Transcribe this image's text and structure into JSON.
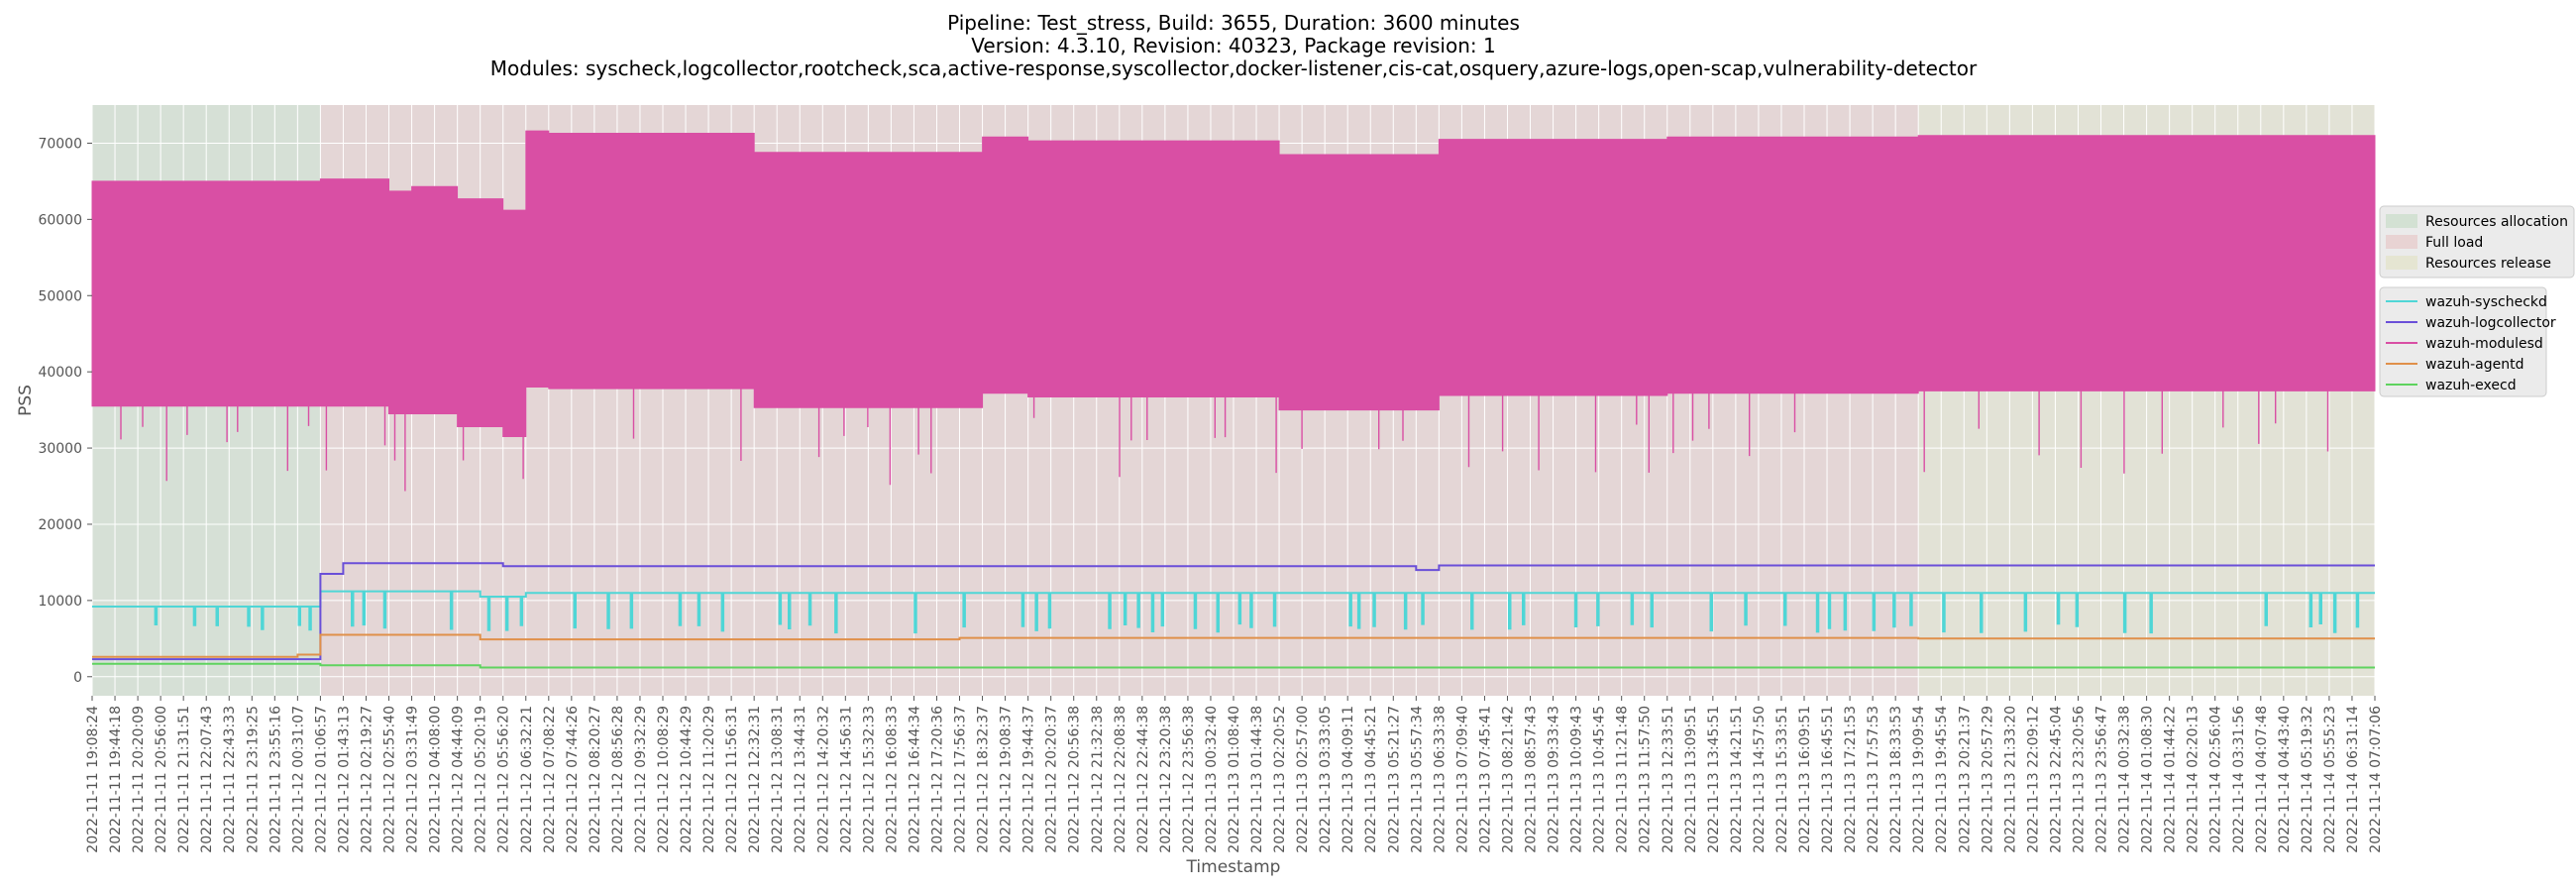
{
  "chart_data": {
    "type": "line",
    "title_lines": [
      "Pipeline: Test_stress, Build: 3655, Duration: 3600 minutes",
      "Version: 4.3.10, Revision: 40323, Package revision: 1",
      "Modules: syscheck,logcollector,rootcheck,sca,active-response,syscollector,docker-listener,cis-cat,osquery,azure-logs,open-scap,vulnerability-detector"
    ],
    "xlabel": "Timestamp",
    "ylabel": "PSS",
    "ylim": [
      -2500,
      75000
    ],
    "yticks": [
      0,
      10000,
      20000,
      30000,
      40000,
      50000,
      60000,
      70000
    ],
    "grid": true,
    "x_tick_labels": [
      "2022-11-11 19:08:24",
      "2022-11-11 19:44:18",
      "2022-11-11 20:20:09",
      "2022-11-11 20:56:00",
      "2022-11-11 21:31:51",
      "2022-11-11 22:07:43",
      "2022-11-11 22:43:33",
      "2022-11-11 23:19:25",
      "2022-11-11 23:55:16",
      "2022-11-12 00:31:07",
      "2022-11-12 01:06:57",
      "2022-11-12 01:43:13",
      "2022-11-12 02:19:27",
      "2022-11-12 02:55:40",
      "2022-11-12 03:31:49",
      "2022-11-12 04:08:00",
      "2022-11-12 04:44:09",
      "2022-11-12 05:20:19",
      "2022-11-12 05:56:20",
      "2022-11-12 06:32:21",
      "2022-11-12 07:08:22",
      "2022-11-12 07:44:26",
      "2022-11-12 08:20:27",
      "2022-11-12 08:56:28",
      "2022-11-12 09:32:29",
      "2022-11-12 10:08:29",
      "2022-11-12 10:44:29",
      "2022-11-12 11:20:29",
      "2022-11-12 11:56:31",
      "2022-11-12 12:32:31",
      "2022-11-12 13:08:31",
      "2022-11-12 13:44:31",
      "2022-11-12 14:20:32",
      "2022-11-12 14:56:31",
      "2022-11-12 15:32:33",
      "2022-11-12 16:08:33",
      "2022-11-12 16:44:34",
      "2022-11-12 17:20:36",
      "2022-11-12 17:56:37",
      "2022-11-12 18:32:37",
      "2022-11-12 19:08:37",
      "2022-11-12 19:44:37",
      "2022-11-12 20:20:37",
      "2022-11-12 20:56:38",
      "2022-11-12 21:32:38",
      "2022-11-12 22:08:38",
      "2022-11-12 22:44:38",
      "2022-11-12 23:20:38",
      "2022-11-12 23:56:38",
      "2022-11-13 00:32:40",
      "2022-11-13 01:08:40",
      "2022-11-13 01:44:38",
      "2022-11-13 02:20:52",
      "2022-11-13 02:57:00",
      "2022-11-13 03:33:05",
      "2022-11-13 04:09:11",
      "2022-11-13 04:45:21",
      "2022-11-13 05:21:27",
      "2022-11-13 05:57:34",
      "2022-11-13 06:33:38",
      "2022-11-13 07:09:40",
      "2022-11-13 07:45:41",
      "2022-11-13 08:21:42",
      "2022-11-13 08:57:43",
      "2022-11-13 09:33:43",
      "2022-11-13 10:09:43",
      "2022-11-13 10:45:45",
      "2022-11-13 11:21:48",
      "2022-11-13 11:57:50",
      "2022-11-13 12:33:51",
      "2022-11-13 13:09:51",
      "2022-11-13 13:45:51",
      "2022-11-13 14:21:51",
      "2022-11-13 14:57:50",
      "2022-11-13 15:33:51",
      "2022-11-13 16:09:51",
      "2022-11-13 16:45:51",
      "2022-11-13 17:21:53",
      "2022-11-13 17:57:53",
      "2022-11-13 18:33:53",
      "2022-11-13 19:09:54",
      "2022-11-13 19:45:54",
      "2022-11-13 20:21:37",
      "2022-11-13 20:57:29",
      "2022-11-13 21:33:20",
      "2022-11-13 22:09:12",
      "2022-11-13 22:45:04",
      "2022-11-13 23:20:56",
      "2022-11-13 23:56:47",
      "2022-11-14 00:32:38",
      "2022-11-14 01:08:30",
      "2022-11-14 01:44:22",
      "2022-11-14 02:20:13",
      "2022-11-14 02:56:04",
      "2022-11-14 03:31:56",
      "2022-11-14 04:07:48",
      "2022-11-14 04:43:40",
      "2022-11-14 05:19:32",
      "2022-11-14 05:55:23",
      "2022-11-14 06:31:14",
      "2022-11-14 07:07:06"
    ],
    "phases": [
      {
        "name": "Resources allocation",
        "start": "2022-11-11 19:08:24",
        "end": "2022-11-12 01:06:57",
        "color": "#2ca02c"
      },
      {
        "name": "Full load",
        "start": "2022-11-12 01:06:57",
        "end": "2022-11-13 19:09:54",
        "color": "#d62728"
      },
      {
        "name": "Resources release",
        "start": "2022-11-13 19:09:54",
        "end": "2022-11-14 07:07:06",
        "color": "#bcbd22"
      }
    ],
    "series": [
      {
        "name": "wazuh-syscheckd",
        "color": "#4fd6d6",
        "segments": [
          {
            "start": "2022-11-11 19:08:24",
            "end": "2022-11-12 01:06:57",
            "value": 9200
          },
          {
            "start": "2022-11-12 01:06:57",
            "end": "2022-11-12 05:20:19",
            "value": 11200
          },
          {
            "start": "2022-11-12 05:20:19",
            "end": "2022-11-12 06:32:21",
            "value": 10500
          },
          {
            "start": "2022-11-12 06:32:21",
            "end": "2022-11-14 07:07:06",
            "value": 11000
          }
        ],
        "dip_to": 5800
      },
      {
        "name": "wazuh-logcollector",
        "color": "#6a4fd8",
        "segments": [
          {
            "start": "2022-11-11 19:08:24",
            "end": "2022-11-12 01:06:57",
            "value": 2300
          },
          {
            "start": "2022-11-12 01:06:57",
            "end": "2022-11-12 01:43:13",
            "value": 13500
          },
          {
            "start": "2022-11-12 01:43:13",
            "end": "2022-11-12 05:56:20",
            "value": 14900
          },
          {
            "start": "2022-11-12 05:56:20",
            "end": "2022-11-13 05:57:34",
            "value": 14500
          },
          {
            "start": "2022-11-13 05:57:34",
            "end": "2022-11-13 06:33:38",
            "value": 14000
          },
          {
            "start": "2022-11-13 06:33:38",
            "end": "2022-11-14 07:07:06",
            "value": 14600
          }
        ]
      },
      {
        "name": "wazuh-modulesd",
        "color": "#d94fa4",
        "fill": true,
        "segments": [
          {
            "start": "2022-11-11 19:08:24",
            "end": "2022-11-12 01:06:57",
            "low": 35500,
            "high": 65000
          },
          {
            "start": "2022-11-12 01:06:57",
            "end": "2022-11-12 02:55:40",
            "low": 35500,
            "high": 65300
          },
          {
            "start": "2022-11-12 02:55:40",
            "end": "2022-11-12 03:31:49",
            "low": 34500,
            "high": 63700
          },
          {
            "start": "2022-11-12 03:31:49",
            "end": "2022-11-12 04:44:09",
            "low": 34500,
            "high": 64300
          },
          {
            "start": "2022-11-12 04:44:09",
            "end": "2022-11-12 05:56:20",
            "low": 32800,
            "high": 62700
          },
          {
            "start": "2022-11-12 05:56:20",
            "end": "2022-11-12 06:32:21",
            "low": 31500,
            "high": 61200
          },
          {
            "start": "2022-11-12 06:32:21",
            "end": "2022-11-12 07:08:22",
            "low": 38000,
            "high": 71600
          },
          {
            "start": "2022-11-12 07:08:22",
            "end": "2022-11-12 12:32:31",
            "low": 37800,
            "high": 71300
          },
          {
            "start": "2022-11-12 12:32:31",
            "end": "2022-11-12 18:32:37",
            "low": 35300,
            "high": 68800
          },
          {
            "start": "2022-11-12 18:32:37",
            "end": "2022-11-12 19:44:37",
            "low": 37200,
            "high": 70800
          },
          {
            "start": "2022-11-12 19:44:37",
            "end": "2022-11-13 02:20:52",
            "low": 36700,
            "high": 70300
          },
          {
            "start": "2022-11-13 02:20:52",
            "end": "2022-11-13 06:33:38",
            "low": 35000,
            "high": 68500
          },
          {
            "start": "2022-11-13 06:33:38",
            "end": "2022-11-13 12:33:51",
            "low": 36900,
            "high": 70500
          },
          {
            "start": "2022-11-13 12:33:51",
            "end": "2022-11-13 19:09:54",
            "low": 37200,
            "high": 70800
          },
          {
            "start": "2022-11-13 19:09:54",
            "end": "2022-11-14 07:07:06",
            "low": 37500,
            "high": 71000
          }
        ]
      },
      {
        "name": "wazuh-agentd",
        "color": "#e0904a",
        "segments": [
          {
            "start": "2022-11-11 19:08:24",
            "end": "2022-11-12 00:31:07",
            "value": 2600
          },
          {
            "start": "2022-11-12 00:31:07",
            "end": "2022-11-12 01:06:57",
            "value": 2900
          },
          {
            "start": "2022-11-12 01:06:57",
            "end": "2022-11-12 05:20:19",
            "value": 5500
          },
          {
            "start": "2022-11-12 05:20:19",
            "end": "2022-11-12 17:56:37",
            "value": 4900
          },
          {
            "start": "2022-11-12 17:56:37",
            "end": "2022-11-13 19:09:54",
            "value": 5100
          },
          {
            "start": "2022-11-13 19:09:54",
            "end": "2022-11-14 07:07:06",
            "value": 5000
          }
        ]
      },
      {
        "name": "wazuh-execd",
        "color": "#5fd35f",
        "segments": [
          {
            "start": "2022-11-11 19:08:24",
            "end": "2022-11-12 01:06:57",
            "value": 1700
          },
          {
            "start": "2022-11-12 01:06:57",
            "end": "2022-11-12 05:20:19",
            "value": 1500
          },
          {
            "start": "2022-11-12 05:20:19",
            "end": "2022-11-14 07:07:06",
            "value": 1200
          }
        ]
      }
    ],
    "legend_location": "center right, outside plot"
  }
}
